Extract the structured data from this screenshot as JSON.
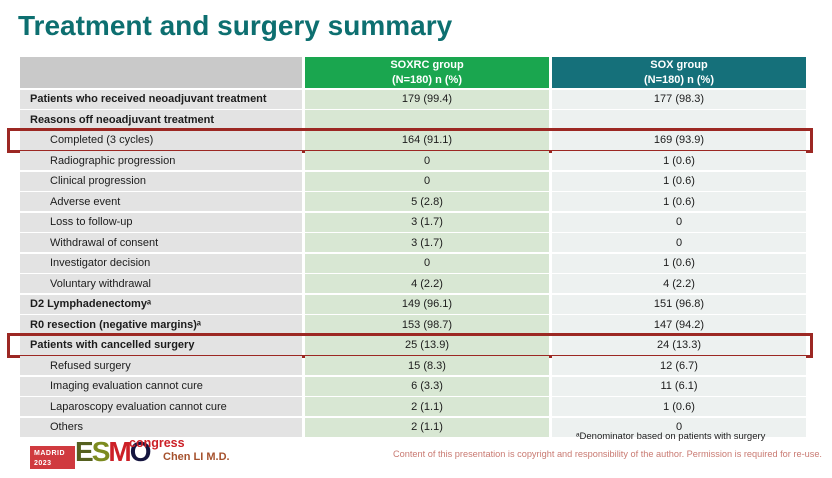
{
  "title": "Treatment and surgery summary",
  "table": {
    "columns": [
      {
        "name": "SOXRC group",
        "sub": "(N=180)  n (%)",
        "color": "#1aa64f"
      },
      {
        "name": "SOX group",
        "sub": "(N=180)  n (%)",
        "color": "#15707a"
      }
    ],
    "rows": [
      {
        "label": "Patients who received neoadjuvant treatment",
        "soxrc": "179 (99.4)",
        "sox": "177 (98.3)",
        "bold": true,
        "indent": false,
        "boxed": false
      },
      {
        "label": "Reasons off neoadjuvant treatment",
        "soxrc": "",
        "sox": "",
        "bold": true,
        "indent": false,
        "boxed": false
      },
      {
        "label": "Completed (3 cycles)",
        "soxrc": "164 (91.1)",
        "sox": "169 (93.9)",
        "bold": false,
        "indent": true,
        "boxed": true
      },
      {
        "label": "Radiographic progression",
        "soxrc": "0",
        "sox": "1 (0.6)",
        "bold": false,
        "indent": true,
        "boxed": false
      },
      {
        "label": "Clinical progression",
        "soxrc": "0",
        "sox": "1 (0.6)",
        "bold": false,
        "indent": true,
        "boxed": false
      },
      {
        "label": "Adverse event",
        "soxrc": "5 (2.8)",
        "sox": "1 (0.6)",
        "bold": false,
        "indent": true,
        "boxed": false
      },
      {
        "label": "Loss to follow-up",
        "soxrc": "3 (1.7)",
        "sox": "0",
        "bold": false,
        "indent": true,
        "boxed": false
      },
      {
        "label": "Withdrawal of consent",
        "soxrc": "3 (1.7)",
        "sox": "0",
        "bold": false,
        "indent": true,
        "boxed": false
      },
      {
        "label": "Investigator decision",
        "soxrc": "0",
        "sox": "1 (0.6)",
        "bold": false,
        "indent": true,
        "boxed": false
      },
      {
        "label": "Voluntary withdrawal",
        "soxrc": "4 (2.2)",
        "sox": "4 (2.2)",
        "bold": false,
        "indent": true,
        "boxed": false
      },
      {
        "label": "D2 Lymphadenectomyᵃ",
        "soxrc": "149 (96.1)",
        "sox": "151 (96.8)",
        "bold": true,
        "indent": false,
        "boxed": false
      },
      {
        "label": "R0 resection (negative margins)ᵃ",
        "soxrc": "153 (98.7)",
        "sox": "147 (94.2)",
        "bold": true,
        "indent": false,
        "boxed": false
      },
      {
        "label": "Patients with cancelled surgery",
        "soxrc": "25 (13.9)",
        "sox": "24 (13.3)",
        "bold": true,
        "indent": false,
        "boxed": true
      },
      {
        "label": "Refused surgery",
        "soxrc": "15 (8.3)",
        "sox": "12 (6.7)",
        "bold": false,
        "indent": true,
        "boxed": false
      },
      {
        "label": "Imaging evaluation cannot cure",
        "soxrc": "6 (3.3)",
        "sox": "11 (6.1)",
        "bold": false,
        "indent": true,
        "boxed": false
      },
      {
        "label": "Laparoscopy evaluation cannot cure",
        "soxrc": "2 (1.1)",
        "sox": "1 (0.6)",
        "bold": false,
        "indent": true,
        "boxed": false
      },
      {
        "label": "Others",
        "soxrc": "2 (1.1)",
        "sox": "0",
        "bold": false,
        "indent": true,
        "boxed": false
      }
    ]
  },
  "footer": {
    "logo": {
      "venue": "MADRID",
      "year": "2023",
      "letter_e": "E",
      "letter_s": "S",
      "letter_m": "M",
      "letter_o": "O",
      "congress": "congress"
    },
    "author": "Chen LI M.D.",
    "footnote": "ᵃDenominator based on patients with surgery",
    "copyright": "Content of this presentation is copyright and responsibility of the author. Permission is required for re-use."
  },
  "colors": {
    "title": "#0d6f70",
    "header_soxrc_bg": "#1aa64f",
    "header_sox_bg": "#15707a",
    "header_blank_bg": "#c9c9c9",
    "label_cell_bg": "#e3e3e3",
    "soxrc_cell_bg": "#d8e7d3",
    "sox_cell_bg": "#edf1f0",
    "highlight_box": "#9c2823",
    "author_text": "#a5512d",
    "copyright_text": "#c97a72",
    "logo_red": "#cc2027"
  }
}
